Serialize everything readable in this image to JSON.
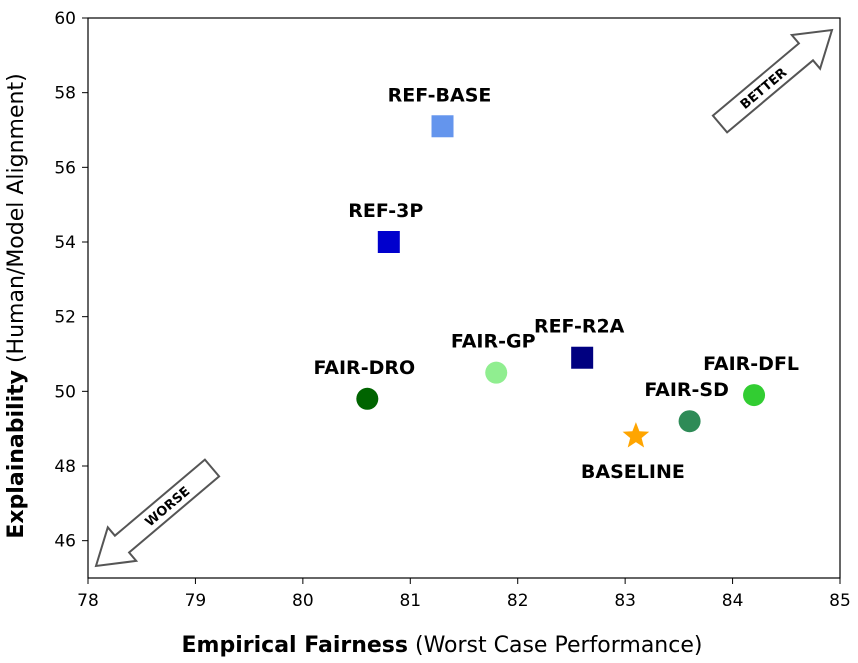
{
  "chart_data": {
    "type": "scatter",
    "xlabel_bold": "Empirical Fairness",
    "xlabel_rest": " (Worst Case Performance)",
    "ylabel_bold": "Explainability",
    "ylabel_rest": " (Human/Model Alignment)",
    "xlim": [
      78,
      85
    ],
    "ylim": [
      45,
      60
    ],
    "xticks": [
      78,
      79,
      80,
      81,
      82,
      83,
      84,
      85
    ],
    "yticks": [
      46,
      48,
      50,
      52,
      54,
      56,
      58,
      60
    ],
    "grid": false,
    "points": [
      {
        "label": "REF-BASE",
        "x": 81.3,
        "y": 57.1,
        "marker": "square",
        "color": "#6495ED",
        "label_pos": "above"
      },
      {
        "label": "REF-3P",
        "x": 80.8,
        "y": 54.0,
        "marker": "square",
        "color": "#0000CD",
        "label_pos": "above"
      },
      {
        "label": "REF-R2A",
        "x": 82.6,
        "y": 50.9,
        "marker": "square",
        "color": "#000080",
        "label_pos": "above"
      },
      {
        "label": "FAIR-GP",
        "x": 81.8,
        "y": 50.5,
        "marker": "circle",
        "color": "#90EE90",
        "label_pos": "above"
      },
      {
        "label": "FAIR-DRO",
        "x": 80.6,
        "y": 49.8,
        "marker": "circle",
        "color": "#006400",
        "label_pos": "above"
      },
      {
        "label": "FAIR-DFL",
        "x": 84.2,
        "y": 49.9,
        "marker": "circle",
        "color": "#32CD32",
        "label_pos": "above"
      },
      {
        "label": "FAIR-SD",
        "x": 83.6,
        "y": 49.2,
        "marker": "circle",
        "color": "#2E8B57",
        "label_pos": "above"
      },
      {
        "label": "BASELINE",
        "x": 83.1,
        "y": 48.8,
        "marker": "star",
        "color": "#FFA500",
        "label_pos": "below"
      }
    ],
    "annotations": [
      {
        "text": "BETTER",
        "direction": "up-right"
      },
      {
        "text": "WORSE",
        "direction": "down-left"
      }
    ]
  }
}
